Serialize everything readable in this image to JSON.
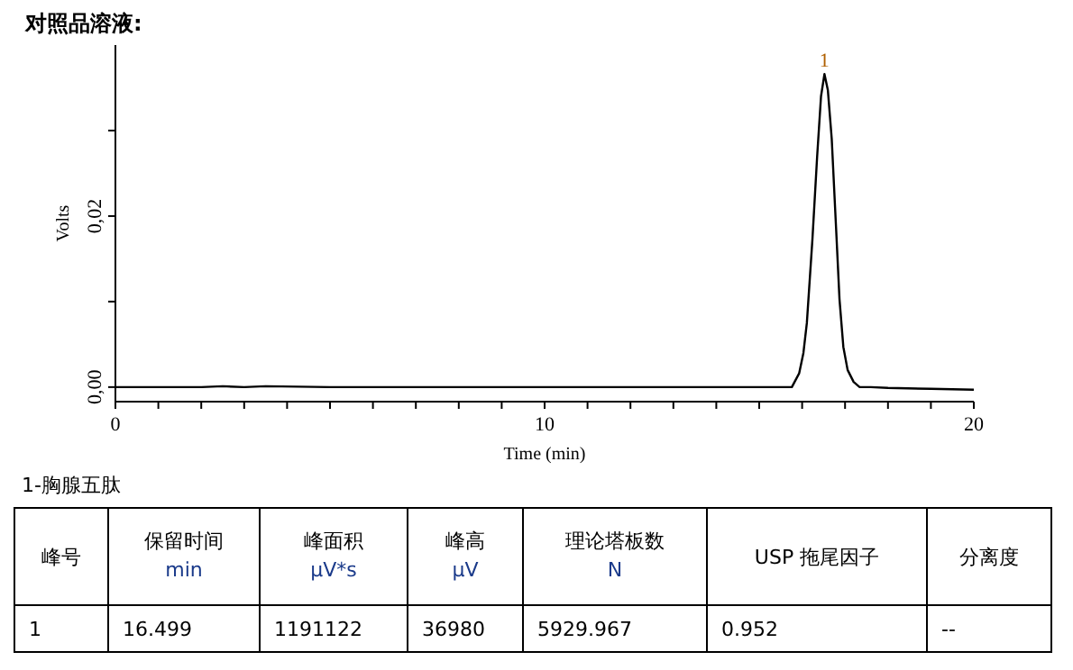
{
  "chart_data": {
    "type": "line",
    "title": "对照品溶液:",
    "xlabel": "Time (min)",
    "ylabel": "Volts",
    "xlim": [
      0,
      20
    ],
    "ylim": [
      -0.0017,
      0.04
    ],
    "xticks": [
      0,
      {
        "value": 1,
        "label": null
      },
      {
        "value": 2,
        "label": null
      },
      {
        "value": 3,
        "label": null
      },
      {
        "value": 4,
        "label": null
      },
      {
        "value": 5,
        "label": null
      },
      {
        "value": 6,
        "label": null
      },
      {
        "value": 7,
        "label": null
      },
      {
        "value": 8,
        "label": null
      },
      {
        "value": 9,
        "label": null
      },
      10,
      {
        "value": 11,
        "label": null
      },
      {
        "value": 12,
        "label": null
      },
      {
        "value": 13,
        "label": null
      },
      {
        "value": 14,
        "label": null
      },
      {
        "value": 15,
        "label": null
      },
      {
        "value": 16,
        "label": null
      },
      {
        "value": 17,
        "label": null
      },
      {
        "value": 18,
        "label": null
      },
      {
        "value": 19,
        "label": null
      },
      20
    ],
    "yticks": [
      {
        "value": 0,
        "label": "0,00"
      },
      {
        "value": 0.01,
        "label": null
      },
      {
        "value": 0.02,
        "label": "0,02"
      },
      {
        "value": 0.03,
        "label": null
      }
    ],
    "series": [
      {
        "color": "#000000",
        "x": [
          0,
          1,
          2,
          2.5,
          3,
          3.5,
          5,
          8,
          12,
          14,
          15,
          15.5,
          15.76,
          15.93,
          16.03,
          16.11,
          16.24,
          16.35,
          16.44,
          16.52,
          16.6,
          16.69,
          16.79,
          16.87,
          16.96,
          17.06,
          17.2,
          17.34,
          17.6,
          18,
          19,
          20
        ],
        "values": [
          0,
          0,
          0,
          0.0001,
          0,
          0.0001,
          0,
          0,
          0,
          0,
          0,
          0,
          0,
          0.0016,
          0.004,
          0.0075,
          0.0173,
          0.027,
          0.034,
          0.0366,
          0.0347,
          0.029,
          0.0187,
          0.0103,
          0.0047,
          0.002,
          0.0006,
          0,
          0,
          -0.0001,
          -0.0002,
          -0.0003
        ]
      }
    ],
    "annotations": [
      {
        "text": "1",
        "x": 16.52,
        "y": 0.0366
      },
      "1-胸腺五肽",
      "峰号",
      "保留时间",
      "min",
      "峰面积",
      "μV*s",
      "峰高",
      "μV",
      "理论塔板数",
      "N",
      "USP 拖尾因子",
      "分离度",
      "1",
      "16.499",
      "1191122",
      "36980",
      "5929.967",
      "0.952",
      "--"
    ]
  }
}
